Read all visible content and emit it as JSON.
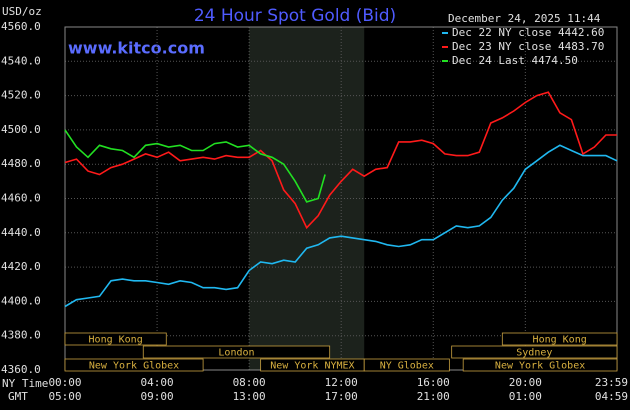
{
  "chart_data": {
    "type": "line",
    "title": "24 Hour Spot Gold (Bid)",
    "timestamp": "December 24, 2025 11:44",
    "unit_label": "USD/oz",
    "watermark": "www.kitco.com",
    "x_axis_label": "NY Time",
    "x2_axis_label": "GMT",
    "xlim": [
      0,
      23.983
    ],
    "xticks": [
      {
        "value": 0,
        "label": "00:00"
      },
      {
        "value": 4,
        "label": "04:00"
      },
      {
        "value": 8,
        "label": "08:00"
      },
      {
        "value": 12,
        "label": "12:00"
      },
      {
        "value": 16,
        "label": "16:00"
      },
      {
        "value": 20,
        "label": "20:00"
      },
      {
        "value": 23.983,
        "label": "23:59"
      }
    ],
    "gmt_tick_labels": [
      "05:00",
      "09:00",
      "13:00",
      "17:00",
      "21:00",
      "01:00",
      "04:59"
    ],
    "ylim": [
      4360,
      4560
    ],
    "yticks": [
      {
        "value": 4360,
        "label": "4360.0"
      },
      {
        "value": 4380,
        "label": "4380.0"
      },
      {
        "value": 4400,
        "label": "4400.0"
      },
      {
        "value": 4420,
        "label": "4420.0"
      },
      {
        "value": 4440,
        "label": "4440.0"
      },
      {
        "value": 4460,
        "label": "4460.0"
      },
      {
        "value": 4480,
        "label": "4480.0"
      },
      {
        "value": 4500,
        "label": "4500.0"
      },
      {
        "value": 4520,
        "label": "4520.0"
      },
      {
        "value": 4540,
        "label": "4540.0"
      },
      {
        "value": 4560,
        "label": "4560.0"
      }
    ],
    "grid": true,
    "shaded_range": [
      8,
      13
    ],
    "sessions": [
      {
        "name": "Hong Kong",
        "start": 0,
        "end": 4.4,
        "row": 0
      },
      {
        "name": "Hong Kong",
        "start": 19,
        "end": 23.983,
        "row": 0
      },
      {
        "name": "London",
        "start": 3.4,
        "end": 11.5,
        "row": 1
      },
      {
        "name": "Sydney",
        "start": 16.8,
        "end": 23.983,
        "row": 1
      },
      {
        "name": "New York Globex",
        "start": 0,
        "end": 6,
        "row": 2
      },
      {
        "name": "New York NYMEX",
        "start": 8.5,
        "end": 13,
        "row": 2
      },
      {
        "name": "NY Globex",
        "start": 13,
        "end": 16.7,
        "row": 2
      },
      {
        "name": "New York Globex",
        "start": 17.3,
        "end": 23.983,
        "row": 2
      }
    ],
    "series": [
      {
        "name": "Dec 22 NY close 4442.60",
        "color": "#20b8f0",
        "x": [
          0,
          0.5,
          1,
          1.5,
          2,
          2.5,
          3,
          3.5,
          4,
          4.5,
          5,
          5.5,
          6,
          6.5,
          7,
          7.5,
          8,
          8.5,
          9,
          9.5,
          10,
          10.5,
          11,
          11.5,
          12,
          12.5,
          13,
          13.5,
          14,
          14.5,
          15,
          15.5,
          16,
          16.5,
          17,
          17.5,
          18,
          18.5,
          19,
          19.5,
          20,
          20.5,
          21,
          21.5,
          22,
          22.5,
          23,
          23.5,
          23.983
        ],
        "values": [
          4397,
          4401,
          4402,
          4403,
          4412,
          4413,
          4412,
          4412,
          4411,
          4410,
          4412,
          4411,
          4408,
          4408,
          4407,
          4408,
          4418,
          4423,
          4422,
          4424,
          4423,
          4431,
          4433,
          4437,
          4438,
          4437,
          4436,
          4435,
          4433,
          4432,
          4433,
          4436,
          4436,
          4440,
          4444,
          4443,
          4444,
          4449,
          4459,
          4466,
          4477,
          4482,
          4487,
          4491,
          4488,
          4485,
          4485,
          4485,
          4482
        ]
      },
      {
        "name": "Dec 23 NY close 4483.70",
        "color": "#ff1a1a",
        "x": [
          0,
          0.5,
          1,
          1.5,
          2,
          2.5,
          3,
          3.5,
          4,
          4.5,
          5,
          5.5,
          6,
          6.5,
          7,
          7.5,
          8,
          8.5,
          9,
          9.5,
          10,
          10.5,
          11,
          11.5,
          12,
          12.5,
          13,
          13.5,
          14,
          14.5,
          15,
          15.5,
          16,
          16.5,
          17,
          17.5,
          18,
          18.5,
          19,
          19.5,
          20,
          20.5,
          21,
          21.5,
          22,
          22.5,
          23,
          23.5,
          23.983
        ],
        "values": [
          4481,
          4483,
          4476,
          4474,
          4478,
          4480,
          4483,
          4486,
          4484,
          4487,
          4482,
          4483,
          4484,
          4483,
          4485,
          4484,
          4484,
          4488,
          4482,
          4465,
          4457,
          4443,
          4450,
          4462,
          4470,
          4477,
          4473,
          4477,
          4478,
          4493,
          4493,
          4494,
          4492,
          4486,
          4485,
          4485,
          4487,
          4504,
          4507,
          4511,
          4516,
          4520,
          4522,
          4510,
          4506,
          4486,
          4490,
          4497,
          4497
        ]
      },
      {
        "name": "Dec 24 Last 4474.50",
        "color": "#22e022",
        "x": [
          0,
          0.5,
          1,
          1.5,
          2,
          2.5,
          3,
          3.5,
          4,
          4.5,
          5,
          5.5,
          6,
          6.5,
          7,
          7.5,
          8,
          8.5,
          9,
          9.5,
          10,
          10.5,
          11,
          11.3
        ],
        "values": [
          4500,
          4490,
          4484,
          4491,
          4489,
          4488,
          4484,
          4491,
          4492,
          4490,
          4491,
          4488,
          4488,
          4492,
          4493,
          4490,
          4491,
          4486,
          4484,
          4480,
          4470,
          4458,
          4460,
          4474
        ]
      }
    ]
  }
}
